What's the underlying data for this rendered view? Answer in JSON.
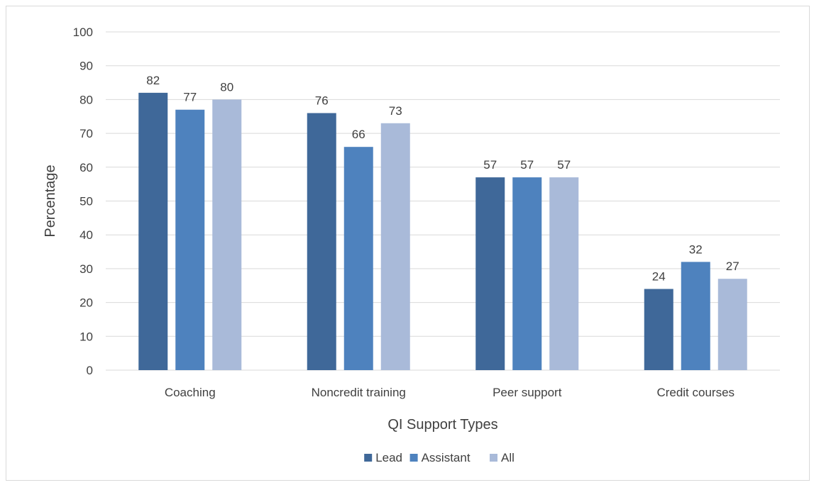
{
  "chart_data": {
    "type": "bar",
    "categories": [
      "Coaching",
      "Noncredit training",
      "Peer support",
      "Credit courses"
    ],
    "series": [
      {
        "name": "Lead",
        "values": [
          82,
          76,
          57,
          24
        ],
        "color": "#3F6899"
      },
      {
        "name": "Assistant",
        "values": [
          77,
          66,
          57,
          32
        ],
        "color": "#4E82BE"
      },
      {
        "name": "All",
        "values": [
          80,
          73,
          57,
          27
        ],
        "color": "#A9BAD9"
      }
    ],
    "title": "",
    "xlabel": "QI Support Types",
    "ylabel": "Percentage",
    "ylim": [
      0,
      100
    ],
    "yticks": [
      0,
      10,
      20,
      30,
      40,
      50,
      60,
      70,
      80,
      90,
      100
    ],
    "grid": true,
    "legend_position": "bottom",
    "data_labels": true,
    "colors": {
      "gridline": "#D9D9D9",
      "text": "#404040"
    }
  }
}
